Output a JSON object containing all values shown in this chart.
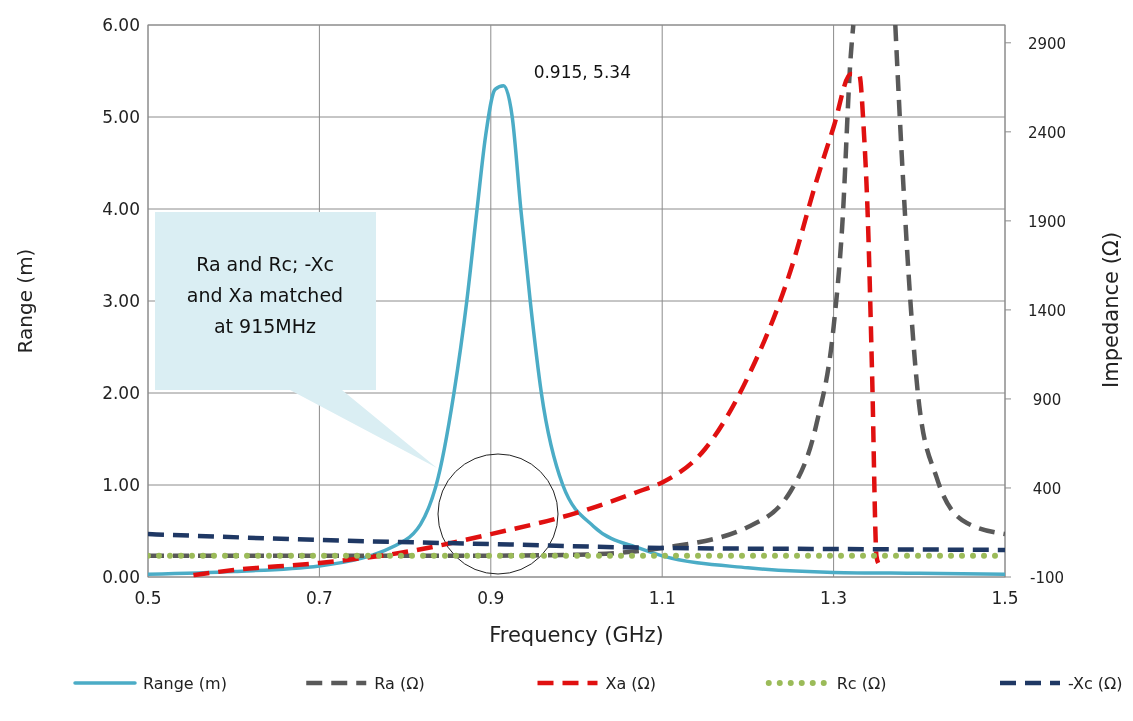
{
  "chart_data": {
    "type": "line",
    "xlabel": "Frequency (GHz)",
    "ylabel": "Range (m)",
    "y2label": "Impedance (Ω)",
    "xlim": [
      0.5,
      1.5
    ],
    "xticks": [
      0.5,
      0.7,
      0.9,
      1.1,
      1.3,
      1.5
    ],
    "ylim": [
      0,
      6
    ],
    "yticks": [
      {
        "value": 0,
        "label": "0.00"
      },
      {
        "value": 1,
        "label": "1.00"
      },
      {
        "value": 2,
        "label": "2.00"
      },
      {
        "value": 3,
        "label": "3.00"
      },
      {
        "value": 4,
        "label": "4.00"
      },
      {
        "value": 5,
        "label": "5.00"
      },
      {
        "value": 6,
        "label": "6.00"
      }
    ],
    "y2lim": [
      -100,
      3000
    ],
    "y2ticks": [
      -100,
      400,
      900,
      1400,
      1900,
      2400,
      2900
    ],
    "grid": true,
    "legend": "bottom",
    "series": [
      {
        "name": "Range (m)",
        "color": "#4bacc6",
        "line_style": "solid",
        "x": [
          0.5,
          0.6,
          0.7,
          0.8,
          0.836,
          0.857,
          0.872,
          0.884,
          0.894,
          0.905,
          0.915,
          0.925,
          0.935,
          0.946,
          0.959,
          0.984,
          1.02,
          1.074,
          1.1,
          1.2,
          1.3,
          1.4,
          1.5
        ],
        "values": [
          0.03,
          0.06,
          0.12,
          0.4,
          0.99,
          2.0,
          3.0,
          4.0,
          4.8,
          5.3,
          5.34,
          5.0,
          4.0,
          3.0,
          2.0,
          1.0,
          0.55,
          0.31,
          0.23,
          0.1,
          0.05,
          0.04,
          0.03
        ]
      },
      {
        "name": "Ra (Ω)",
        "color": "#595959",
        "line_style": "dashed",
        "axis": "y2",
        "x": [
          0.5,
          0.7,
          0.9,
          1.0,
          1.1,
          1.2,
          1.25,
          1.28,
          1.3,
          1.31,
          1.32,
          1.323,
          1.345,
          1.372,
          1.38,
          1.39,
          1.4,
          1.42,
          1.45,
          1.5
        ],
        "values": [
          20,
          20,
          20,
          25,
          63,
          181,
          383,
          759,
          1304,
          1866,
          2826,
          3000,
          null,
          3000,
          2225,
          1422,
          860,
          462,
          220,
          141
        ]
      },
      {
        "name": "Xa (Ω)",
        "color": "#e01010",
        "line_style": "dashed",
        "axis": "y2",
        "x": [
          0.553,
          0.6,
          0.7,
          0.8,
          0.9,
          1.0,
          1.074,
          1.1,
          1.15,
          1.2,
          1.25,
          1.28,
          1.3,
          1.32,
          1.33,
          1.335,
          1.34,
          1.345,
          1.35,
          1.352
        ],
        "values": [
          -89,
          -61,
          -21,
          40,
          141,
          260,
          383,
          431,
          619,
          1023,
          1624,
          2124,
          2427,
          2725,
          2719,
          2427,
          1905,
          1023,
          18,
          -21
        ]
      },
      {
        "name": "Rc (Ω)",
        "color": "#9bbb59",
        "line_style": "dotted",
        "axis": "y2",
        "x": [
          0.5,
          1.5
        ],
        "values": [
          20,
          20
        ]
      },
      {
        "name": "-Xc (Ω)",
        "color": "#1f3864",
        "line_style": "dashed",
        "axis": "y2",
        "x": [
          0.5,
          0.7,
          0.9,
          1.1,
          1.3,
          1.5
        ],
        "values": [
          141,
          108,
          85,
          63,
          57,
          52
        ]
      }
    ],
    "annotations": [
      {
        "text": "0.915, 5.34",
        "x": 0.915,
        "y": 5.34
      },
      "Ra and Rc; -Xc and Xa matched at 915MHz"
    ]
  }
}
